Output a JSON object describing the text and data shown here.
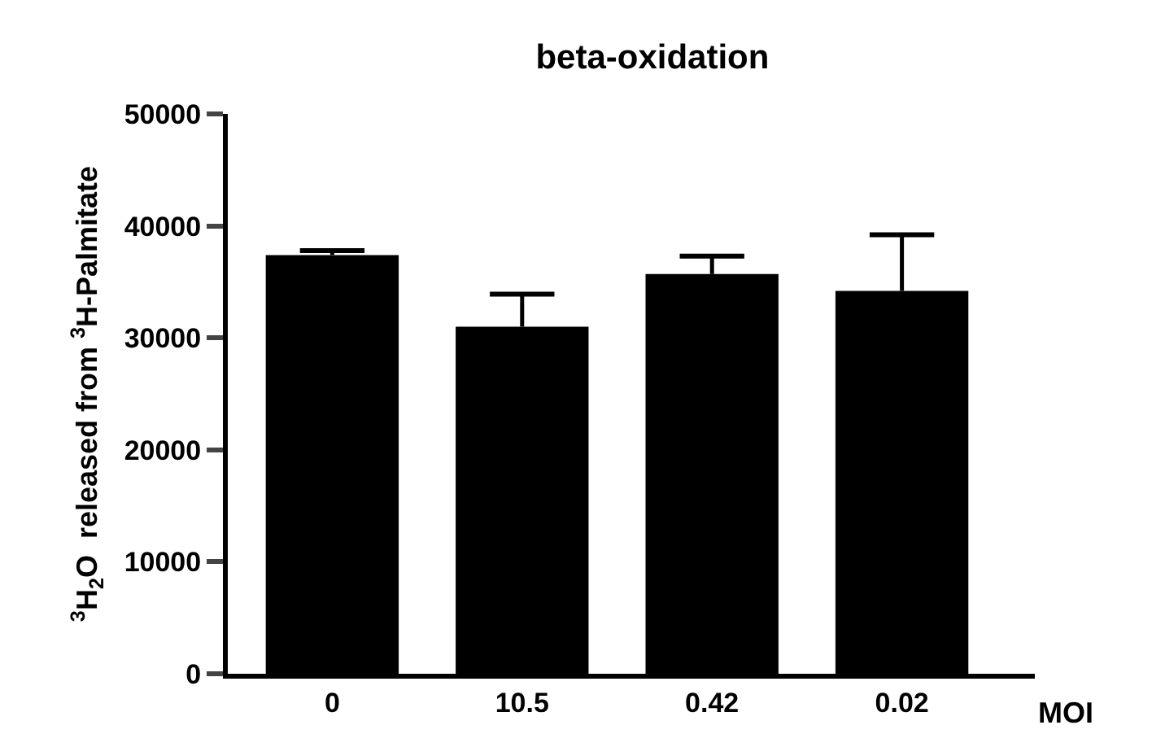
{
  "chart_data": {
    "type": "bar",
    "title": "beta-oxidation",
    "xlabel": "MOI",
    "ylabel": "$^{3}$H$_{2}$O  released from $^{3}$H-Palmitate",
    "categories": [
      "0",
      "10.5",
      "0.42",
      "0.02"
    ],
    "values": [
      37400,
      31000,
      35700,
      34200
    ],
    "color": "#000000",
    "errors": [
      [
        37400,
        37800
      ],
      [
        31000,
        33900
      ],
      [
        35700,
        37300
      ],
      [
        34200,
        39200
      ]
    ],
    "ylim": [
      0,
      50000
    ],
    "yticks": [
      0,
      10000,
      20000,
      30000,
      40000,
      50000
    ]
  }
}
